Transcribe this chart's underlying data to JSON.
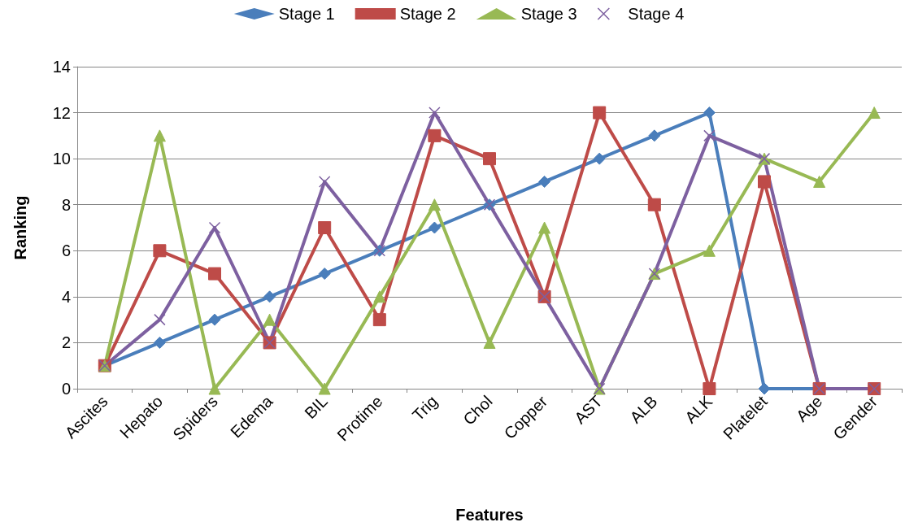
{
  "chart_data": {
    "type": "line",
    "xlabel": "Features",
    "ylabel": "Ranking",
    "categories": [
      "Ascites",
      "Hepato",
      "Spiders",
      "Edema",
      "BIL",
      "Protime",
      "Trig",
      "Chol",
      "Copper",
      "AST",
      "ALB",
      "ALK",
      "Platelet",
      "Age",
      "Gender"
    ],
    "series": [
      {
        "name": "Stage 1",
        "color": "#4a7ebb",
        "marker": "diamond",
        "values": [
          1,
          2,
          3,
          4,
          5,
          6,
          7,
          8,
          9,
          10,
          11,
          12,
          0,
          0,
          0
        ]
      },
      {
        "name": "Stage 2",
        "color": "#be4b48",
        "marker": "square",
        "values": [
          1,
          6,
          5,
          2,
          7,
          3,
          11,
          10,
          4,
          12,
          8,
          0,
          9,
          0,
          0
        ]
      },
      {
        "name": "Stage 3",
        "color": "#98b954",
        "marker": "triangle",
        "values": [
          1,
          11,
          0,
          3,
          0,
          4,
          8,
          2,
          7,
          0,
          5,
          6,
          10,
          9,
          12
        ]
      },
      {
        "name": "Stage 4",
        "color": "#7d60a0",
        "marker": "cross",
        "values": [
          1,
          3,
          7,
          2,
          9,
          6,
          12,
          8,
          4,
          0,
          5,
          11,
          10,
          0,
          0
        ]
      }
    ],
    "ylim": [
      0,
      14
    ],
    "yticks": [
      0,
      2,
      4,
      6,
      8,
      10,
      12,
      14
    ],
    "grid": "y",
    "legend": "top",
    "line_style": "solid"
  }
}
